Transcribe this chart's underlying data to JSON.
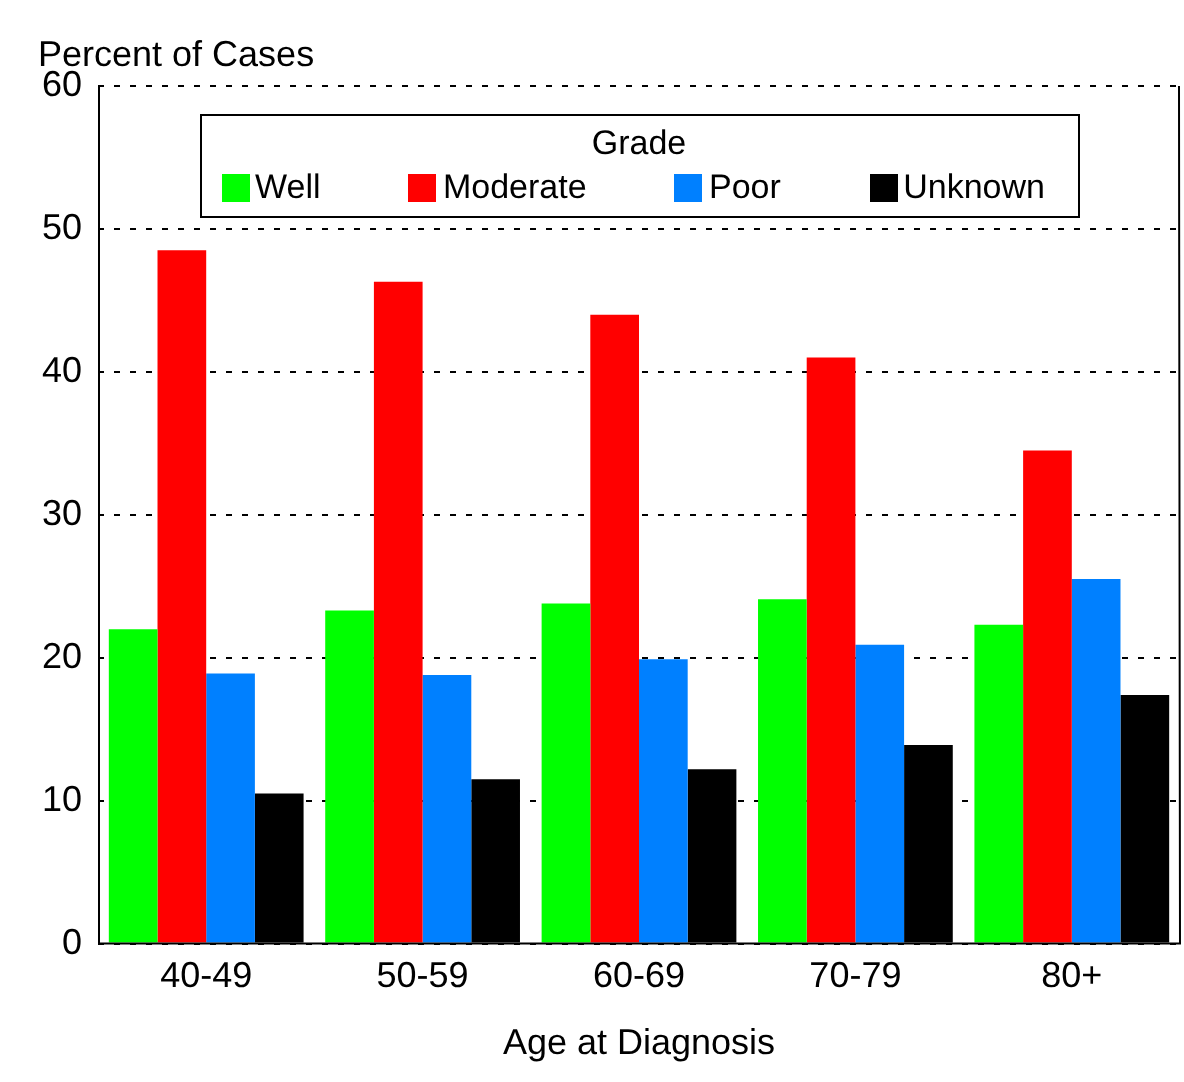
{
  "chart_data": {
    "type": "bar",
    "ylabel": "Percent of Cases",
    "xlabel": "Age at Diagnosis",
    "legend_title": "Grade",
    "legend": "top",
    "categories": [
      "40-49",
      "50-59",
      "60-69",
      "70-79",
      "80+"
    ],
    "series": [
      {
        "name": "Well",
        "color": "#00ff00",
        "values": [
          22.0,
          23.3,
          23.8,
          24.1,
          22.3
        ]
      },
      {
        "name": "Moderate",
        "color": "#ff0000",
        "values": [
          48.5,
          46.3,
          44.0,
          41.0,
          34.5
        ]
      },
      {
        "name": "Poor",
        "color": "#0080ff",
        "values": [
          18.9,
          18.8,
          19.9,
          20.9,
          25.5
        ]
      },
      {
        "name": "Unknown",
        "color": "#000000",
        "values": [
          10.5,
          11.5,
          12.2,
          13.9,
          17.4
        ]
      }
    ],
    "ylim": [
      0,
      60
    ],
    "yticks": [
      0,
      10,
      20,
      30,
      40,
      50,
      60
    ],
    "grid": "y"
  }
}
